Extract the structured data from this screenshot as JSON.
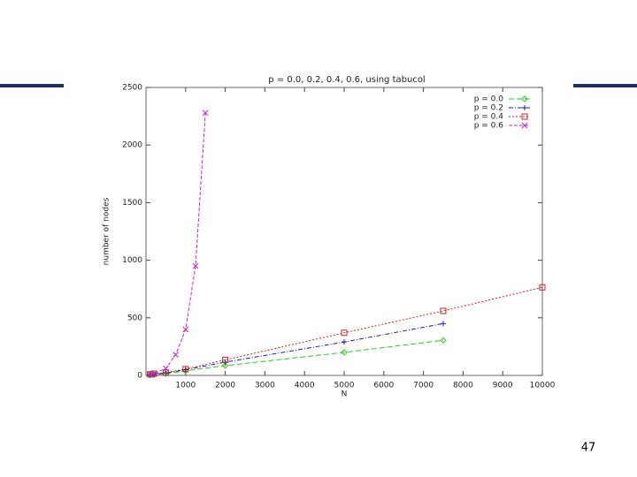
{
  "chart_data": {
    "type": "line",
    "title": "p = 0.0, 0.2, 0.4, 0.6, using tabucol",
    "x_label": "N",
    "y_label": "number of nodes",
    "xlim": [
      0,
      10000
    ],
    "ylim": [
      0,
      2500
    ],
    "xticks": [
      1000,
      2000,
      3000,
      4000,
      5000,
      6000,
      7000,
      8000,
      9000,
      10000
    ],
    "yticks": [
      0,
      500,
      1000,
      1500,
      2000,
      2500
    ],
    "legend": "top-right",
    "series": [
      {
        "name": "p = 0.0",
        "color": "#22cc22",
        "marker": "diamond",
        "x": [
          100,
          200,
          500,
          1000,
          2000,
          5000,
          7500
        ],
        "values": [
          3,
          5,
          15,
          40,
          85,
          200,
          305
        ]
      },
      {
        "name": "p = 0.2",
        "color": "#1a1aa8",
        "marker": "plus",
        "x": [
          100,
          200,
          500,
          1000,
          2000,
          5000,
          7500
        ],
        "values": [
          5,
          10,
          20,
          50,
          115,
          290,
          450
        ]
      },
      {
        "name": "p = 0.4",
        "color": "#cc2222",
        "marker": "square",
        "x": [
          100,
          200,
          500,
          1000,
          2000,
          5000,
          7500,
          10000
        ],
        "values": [
          10,
          15,
          25,
          55,
          135,
          370,
          560,
          765
        ]
      },
      {
        "name": "p = 0.6",
        "color": "#cc22cc",
        "marker": "cross",
        "x": [
          100,
          200,
          500,
          750,
          1000,
          1250,
          1500
        ],
        "values": [
          10,
          15,
          60,
          180,
          400,
          950,
          2280
        ]
      }
    ]
  },
  "page_number": "47"
}
